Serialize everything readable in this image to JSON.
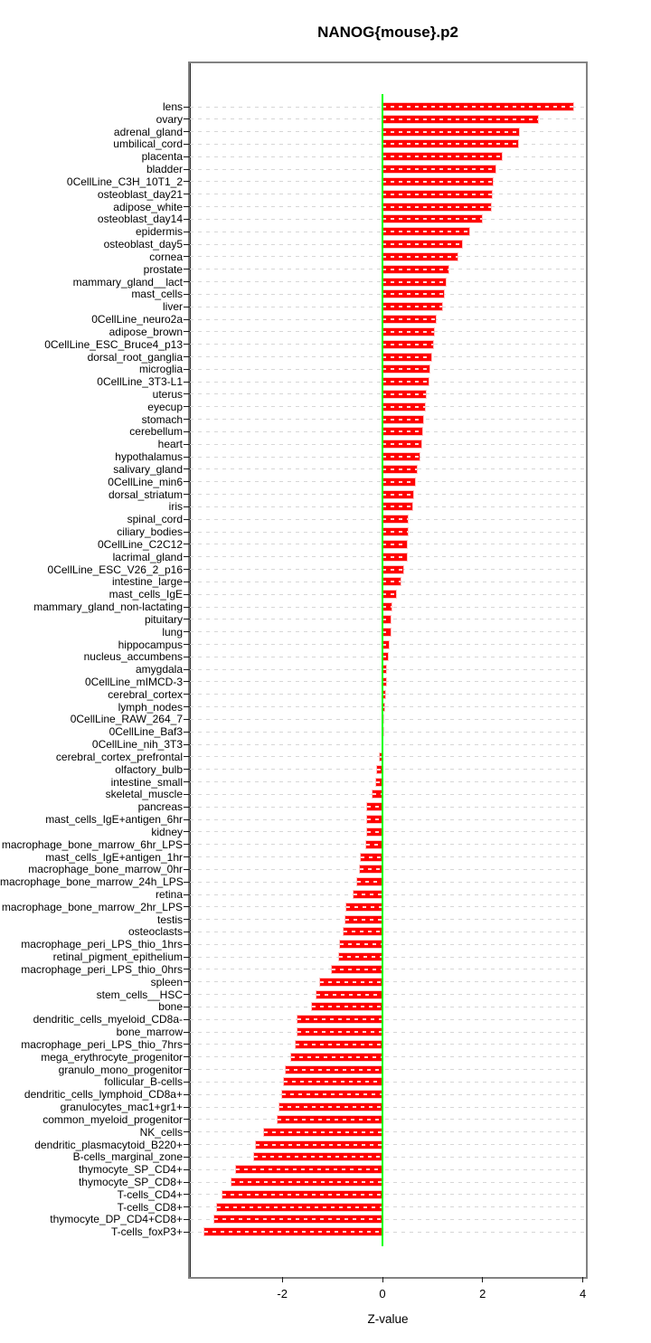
{
  "title": "NANOG{mouse}.p2",
  "chart_data": {
    "type": "bar",
    "orientation": "horizontal",
    "title": "NANOG{mouse}.p2",
    "xlabel": "Z-value",
    "x_ticks": [
      -2,
      0,
      2,
      4
    ],
    "xlim": [
      -3.85,
      4.05
    ],
    "grid": "dashed-horizontal-per-category",
    "legend": "none",
    "bar_color": "#FF0000",
    "zero_line_color": "#00FF00",
    "grid_color": "#d6d6d6",
    "box_color": "#828282",
    "categories": [
      "lens",
      "ovary",
      "adrenal_gland",
      "umbilical_cord",
      "placenta",
      "bladder",
      "0CellLine_C3H_10T1_2",
      "osteoblast_day21",
      "adipose_white",
      "osteoblast_day14",
      "epidermis",
      "osteoblast_day5",
      "cornea",
      "prostate",
      "mammary_gland__lact",
      "mast_cells",
      "liver",
      "0CellLine_neuro2a",
      "adipose_brown",
      "0CellLine_ESC_Bruce4_p13",
      "dorsal_root_ganglia",
      "microglia",
      "0CellLine_3T3-L1",
      "uterus",
      "eyecup",
      "stomach",
      "cerebellum",
      "heart",
      "hypothalamus",
      "salivary_gland",
      "0CellLine_min6",
      "dorsal_striatum",
      "iris",
      "spinal_cord",
      "ciliary_bodies",
      "0CellLine_C2C12",
      "lacrimal_gland",
      "0CellLine_ESC_V26_2_p16",
      "intestine_large",
      "mast_cells_IgE",
      "mammary_gland_non-lactating",
      "pituitary",
      "lung",
      "hippocampus",
      "nucleus_accumbens",
      "amygdala",
      "0CellLine_mIMCD-3",
      "cerebral_cortex",
      "lymph_nodes",
      "0CellLine_RAW_264_7",
      "0CellLine_Baf3",
      "0CellLine_nih_3T3",
      "cerebral_cortex_prefrontal",
      "olfactory_bulb",
      "intestine_small",
      "skeletal_muscle",
      "pancreas",
      "mast_cells_IgE+antigen_6hr",
      "kidney",
      "macrophage_bone_marrow_6hr_LPS",
      "mast_cells_IgE+antigen_1hr",
      "macrophage_bone_marrow_0hr",
      "macrophage_bone_marrow_24h_LPS",
      "retina",
      "macrophage_bone_marrow_2hr_LPS",
      "testis",
      "osteoclasts",
      "macrophage_peri_LPS_thio_1hrs",
      "retinal_pigment_epithelium",
      "macrophage_peri_LPS_thio_0hrs",
      "spleen",
      "stem_cells__HSC",
      "bone",
      "dendritic_cells_myeloid_CD8a-",
      "bone_marrow",
      "macrophage_peri_LPS_thio_7hrs",
      "mega_erythrocyte_progenitor",
      "granulo_mono_progenitor",
      "follicular_B-cells",
      "dendritic_cells_lymphoid_CD8a+",
      "granulocytes_mac1+gr1+",
      "common_myeloid_progenitor",
      "NK_cells",
      "dendritic_plasmacytoid_B220+",
      "B-cells_marginal_zone",
      "thymocyte_SP_CD4+",
      "thymocyte_SP_CD8+",
      "T-cells_CD4+",
      "T-cells_CD8+",
      "thymocyte_DP_CD4+CD8+",
      "T-cells_foxP3+"
    ],
    "values": [
      3.8,
      3.11,
      2.73,
      2.7,
      2.39,
      2.25,
      2.21,
      2.18,
      2.17,
      1.99,
      1.74,
      1.58,
      1.5,
      1.31,
      1.27,
      1.23,
      1.2,
      1.06,
      1.02,
      1.01,
      0.97,
      0.93,
      0.92,
      0.87,
      0.84,
      0.82,
      0.79,
      0.78,
      0.74,
      0.68,
      0.65,
      0.62,
      0.6,
      0.51,
      0.5,
      0.49,
      0.48,
      0.42,
      0.37,
      0.27,
      0.18,
      0.17,
      0.16,
      0.12,
      0.11,
      0.08,
      0.07,
      0.06,
      0.03,
      0.02,
      0.01,
      0.0,
      -0.05,
      -0.1,
      -0.13,
      -0.2,
      -0.31,
      -0.31,
      -0.31,
      -0.32,
      -0.44,
      -0.46,
      -0.5,
      -0.57,
      -0.73,
      -0.74,
      -0.78,
      -0.84,
      -0.86,
      -1.01,
      -1.25,
      -1.31,
      -1.41,
      -1.69,
      -1.7,
      -1.74,
      -1.82,
      -1.93,
      -1.97,
      -2.01,
      -2.05,
      -2.09,
      -2.37,
      -2.53,
      -2.56,
      -2.93,
      -3.02,
      -3.19,
      -3.31,
      -3.36,
      -3.55
    ]
  }
}
